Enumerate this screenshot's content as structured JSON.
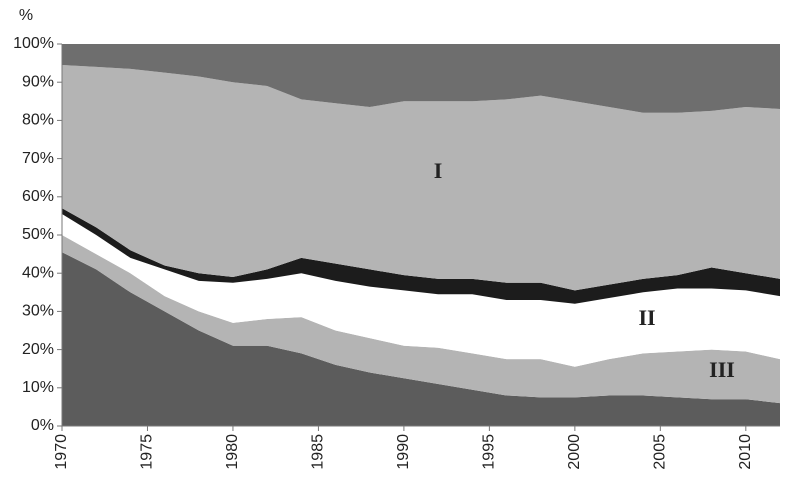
{
  "chart_data": {
    "type": "stacked_area",
    "y_label": "%",
    "x": [
      1970,
      1972,
      1974,
      1976,
      1978,
      1980,
      1982,
      1984,
      1986,
      1988,
      1990,
      1992,
      1994,
      1996,
      1998,
      2000,
      2002,
      2004,
      2006,
      2008,
      2010,
      2012
    ],
    "series": [
      {
        "color": "#5c5c5c",
        "values": [
          45.5,
          41,
          35,
          30,
          25,
          21,
          21,
          19,
          16,
          14,
          12.5,
          11,
          9.5,
          8,
          7.5,
          7.5,
          8,
          8,
          7.5,
          7,
          7,
          6
        ]
      },
      {
        "color": "#b4b4b4",
        "values": [
          4.5,
          4,
          5,
          4,
          5,
          6,
          7,
          9.5,
          9,
          9,
          8.5,
          9.5,
          9.5,
          9.5,
          10,
          8,
          9.5,
          11,
          12,
          13,
          12.5,
          11.5
        ]
      },
      {
        "color": "#ffffff",
        "values": [
          5.5,
          5,
          4,
          7,
          8,
          10.5,
          10.5,
          11.5,
          13,
          13.5,
          14.5,
          14,
          15.5,
          15.5,
          15.5,
          16.5,
          16,
          16,
          16.5,
          16,
          16,
          16.5
        ]
      },
      {
        "color": "#1c1c1c",
        "values": [
          1.5,
          2,
          2,
          1,
          2,
          1.5,
          2.5,
          4,
          4.5,
          4.5,
          4,
          4,
          4,
          4.5,
          4.5,
          3.5,
          3.5,
          3.5,
          3.5,
          5.5,
          4.5,
          4.5
        ]
      },
      {
        "color": "#b4b4b4",
        "values": [
          37.5,
          42,
          47.5,
          50.5,
          51.5,
          51,
          48,
          41.5,
          42,
          42.5,
          45.5,
          46.5,
          46.5,
          48,
          49,
          49.5,
          46.5,
          43.5,
          42.5,
          41,
          43.5,
          44.5
        ]
      },
      {
        "color": "#6e6e6e",
        "values": [
          5.5,
          6,
          6.5,
          7.5,
          8.5,
          10,
          11,
          14.5,
          15.5,
          16.5,
          15,
          15,
          15,
          14.5,
          13.5,
          15,
          16.5,
          18,
          18,
          17.5,
          16.5,
          17
        ]
      }
    ],
    "annotations": [
      "I",
      "II",
      "III"
    ],
    "xlim": [
      1970,
      2012
    ],
    "xticks": [
      1970,
      1975,
      1980,
      1985,
      1990,
      1995,
      2000,
      2005,
      2010
    ],
    "ylim": [
      0,
      100
    ],
    "yticks": [
      {
        "value": 0,
        "label": "0%"
      },
      {
        "value": 10,
        "label": "10%"
      },
      {
        "value": 20,
        "label": "20%"
      },
      {
        "value": 30,
        "label": "30%"
      },
      {
        "value": 40,
        "label": "40%"
      },
      {
        "value": 50,
        "label": "50%"
      },
      {
        "value": 60,
        "label": "60%"
      },
      {
        "value": 70,
        "label": "70%"
      },
      {
        "value": 80,
        "label": "80%"
      },
      {
        "value": 90,
        "label": "90%"
      },
      {
        "value": 100,
        "label": "100%"
      }
    ]
  }
}
